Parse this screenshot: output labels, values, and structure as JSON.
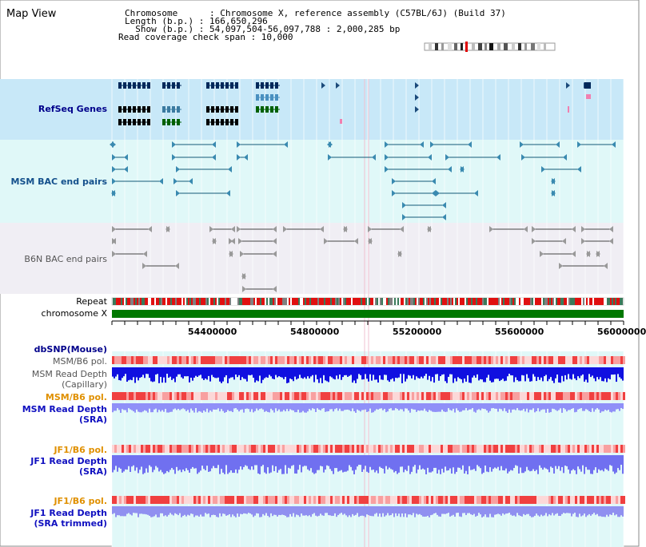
{
  "window": {
    "title": "Map View"
  },
  "info": {
    "lines": [
      "Chromosome      : Chromosome X, reference assembly (C57BL/6J) (Build 37)",
      "Length (b.p.) : 166,650,296",
      "  Show (b.p.) : 54,097,504-56,097,788 : 2,000,285 bp",
      "Read coverage check span : 10,000"
    ]
  },
  "tracks": {
    "refseq": "RefSeq Genes",
    "msm_bac": "MSM BAC end pairs",
    "b6n_bac": "B6N BAC end pairs",
    "repeat": "Repeat",
    "chromosome": "chromosome X",
    "dbsnp": "dbSNP(Mouse)",
    "msm_pol": "MSM/B6 pol.",
    "msm_depth_cap_1": "MSM Read Depth",
    "msm_depth_cap_2": "(Capillary)",
    "msm_pol_sra": "MSM/B6 pol.",
    "msm_depth_sra_1": "MSM Read Depth",
    "msm_depth_sra_2": "(SRA)",
    "jf1_pol": "JF1/B6 pol.",
    "jf1_depth_1": "JF1 Read Depth",
    "jf1_depth_2": "(SRA)",
    "jf1_pol_trim": "JF1/B6 pol.",
    "jf1_trim_1": "JF1 Read Depth",
    "jf1_trim_2": "(SRA trimmed)"
  },
  "axis": {
    "ticks": [
      "54400000",
      "54800000",
      "55200000",
      "55600000",
      "56000000"
    ]
  },
  "colors": {
    "refseq_bg": "#c8e8f8",
    "msm_bac_bg": "#e0f8f8",
    "b6n_bg": "#f0eef4",
    "lower_bg": "#e8f8ec",
    "chromosome": "#007800",
    "depth_blue": "#1010e0",
    "depth_light": "#8080f0",
    "pol_red": "#f04040"
  }
}
